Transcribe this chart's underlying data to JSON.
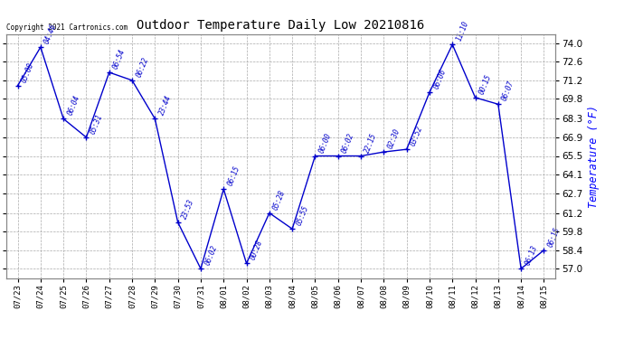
{
  "title": "Outdoor Temperature Daily Low 20210816",
  "ylabel": "Temperature (°F)",
  "copyright": "Copyright 2021 Cartronics.com",
  "background_color": "#ffffff",
  "line_color": "#0000cc",
  "grid_color": "#aaaaaa",
  "yticks": [
    57.0,
    58.4,
    59.8,
    61.2,
    62.7,
    64.1,
    65.5,
    66.9,
    68.3,
    69.8,
    71.2,
    72.6,
    74.0
  ],
  "dates": [
    "07/23",
    "07/24",
    "07/25",
    "07/26",
    "07/27",
    "07/28",
    "07/29",
    "07/30",
    "07/31",
    "08/01",
    "08/02",
    "08/03",
    "08/04",
    "08/05",
    "08/06",
    "08/07",
    "08/08",
    "08/09",
    "08/10",
    "08/11",
    "08/12",
    "08/13",
    "08/14",
    "08/15"
  ],
  "values": [
    70.8,
    73.7,
    68.3,
    66.9,
    71.8,
    71.2,
    68.3,
    60.5,
    57.0,
    63.0,
    57.4,
    61.2,
    60.0,
    65.5,
    65.5,
    65.5,
    65.8,
    66.0,
    70.3,
    73.9,
    69.9,
    69.4,
    57.0,
    58.4
  ],
  "time_labels": [
    "05:08",
    "04:46",
    "06:04",
    "05:31",
    "06:54",
    "06:22",
    "23:44",
    "23:53",
    "06:02",
    "06:15",
    "00:28",
    "05:28",
    "05:55",
    "06:00",
    "06:02",
    "22:15",
    "02:30",
    "03:52",
    "06:06",
    "11:10",
    "00:15",
    "06:07",
    "06:13",
    "06:15"
  ],
  "ylim_low": 56.3,
  "ylim_high": 74.7
}
